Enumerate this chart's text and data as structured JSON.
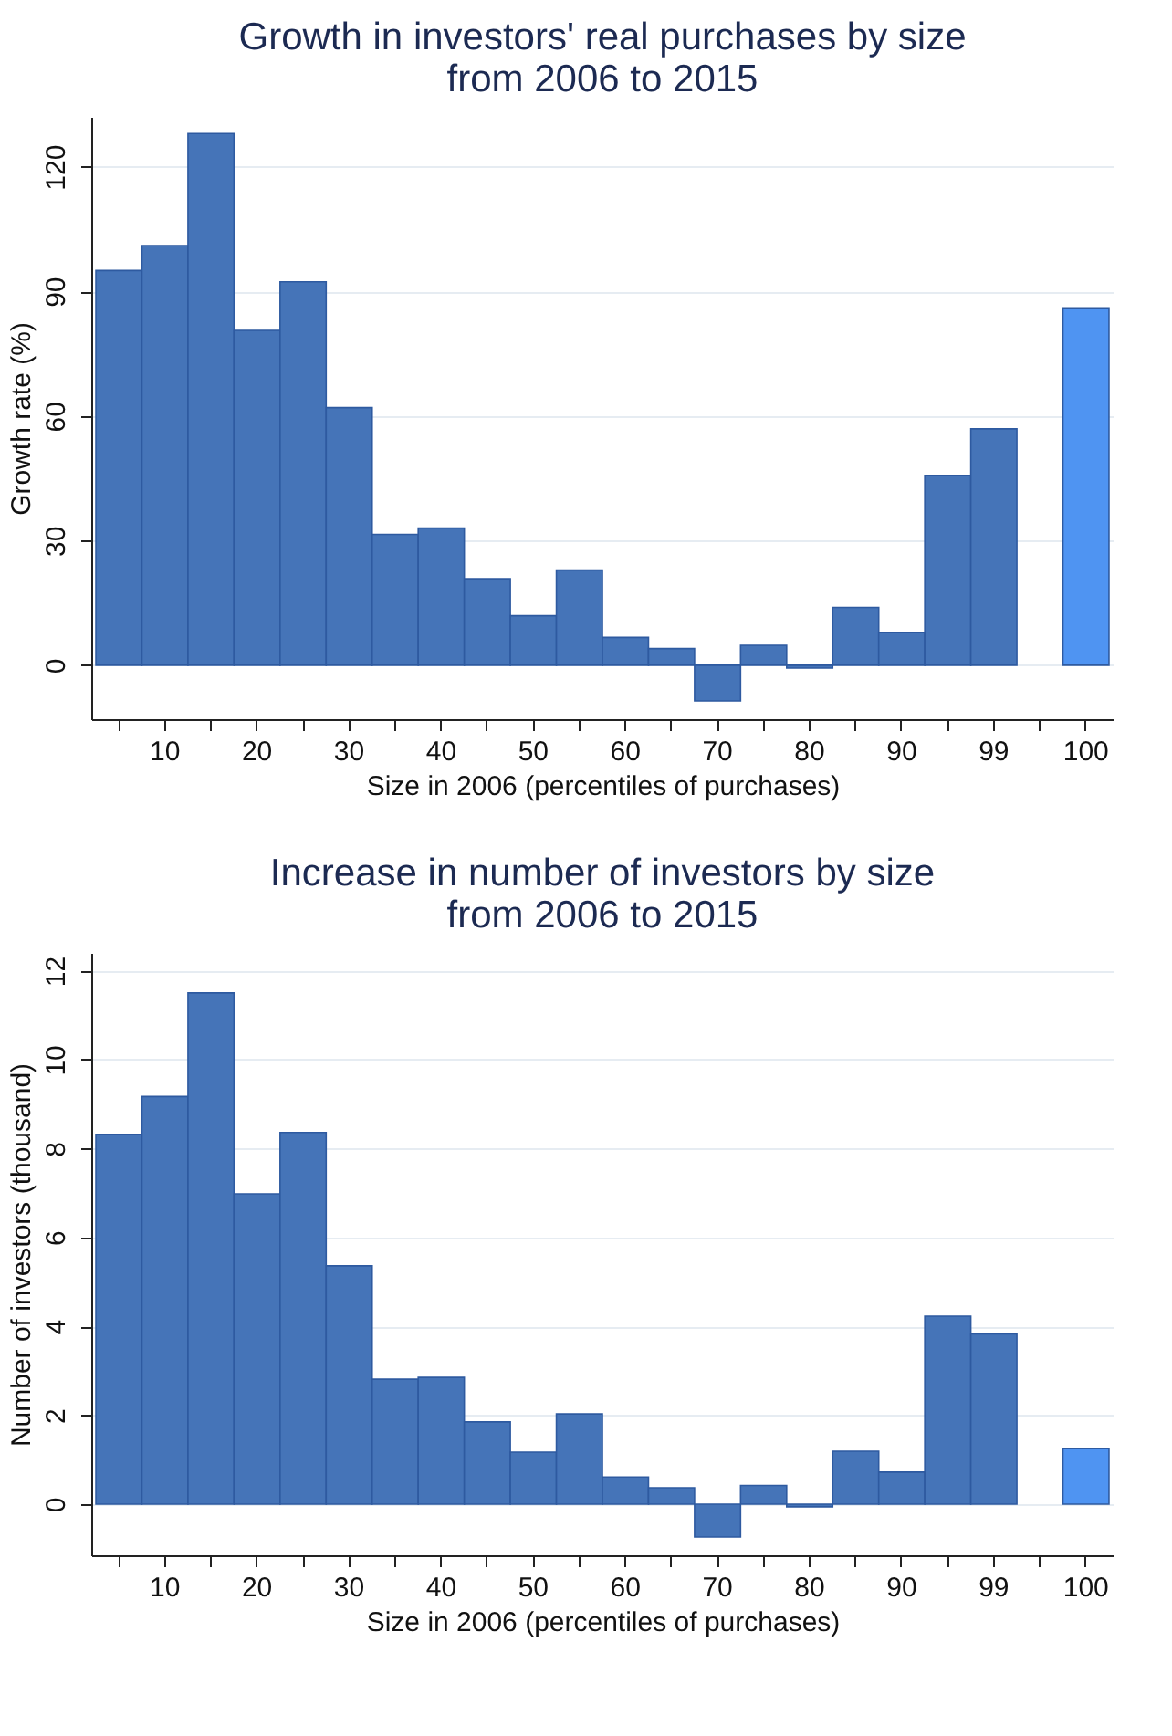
{
  "chart_data": [
    {
      "type": "bar",
      "title": "Growth in investors' real purchases by size\nfrom 2006 to 2015",
      "xlabel": "Size in 2006 (percentiles of purchases)",
      "ylabel": "Growth rate (%)",
      "categories": [
        null,
        "10",
        null,
        "20",
        null,
        "30",
        null,
        "40",
        null,
        "50",
        null,
        "60",
        null,
        "70",
        null,
        "80",
        null,
        "90",
        null,
        "99",
        null,
        "100"
      ],
      "values": [
        95,
        101,
        128,
        80.6,
        92.3,
        62,
        31.5,
        33,
        20.8,
        11.9,
        22.9,
        6.7,
        4,
        -8.6,
        4.8,
        -0.7,
        13.9,
        7.9,
        45.7,
        56.9,
        null,
        86
      ],
      "colors": [
        "#4574b8",
        "#4574b8",
        "#4574b8",
        "#4574b8",
        "#4574b8",
        "#4574b8",
        "#4574b8",
        "#4574b8",
        "#4574b8",
        "#4574b8",
        "#4574b8",
        "#4574b8",
        "#4574b8",
        "#4574b8",
        "#4574b8",
        "#4574b8",
        "#4574b8",
        "#4574b8",
        "#4574b8",
        "#4574b8",
        "#4574b8",
        "#4f94f2"
      ],
      "ylim": [
        -13,
        132
      ],
      "yticks": [
        0,
        30,
        60,
        90,
        120
      ],
      "grid": "y"
    },
    {
      "type": "bar",
      "title": "Increase in number of investors by size\nfrom 2006 to 2015",
      "xlabel": "Size in 2006 (percentiles of purchases)",
      "ylabel": "Number of investors (thousand)",
      "categories": [
        null,
        "10",
        null,
        "20",
        null,
        "30",
        null,
        "40",
        null,
        "50",
        null,
        "60",
        null,
        "70",
        null,
        "80",
        null,
        "90",
        null,
        "99",
        null,
        "100"
      ],
      "values": [
        8.32,
        9.17,
        11.5,
        6.98,
        8.36,
        5.36,
        2.81,
        2.85,
        1.85,
        1.17,
        2.03,
        0.61,
        0.37,
        -0.74,
        0.42,
        -0.06,
        1.19,
        0.72,
        4.23,
        3.83,
        null,
        1.25
      ],
      "colors": [
        "#4574b8",
        "#4574b8",
        "#4574b8",
        "#4574b8",
        "#4574b8",
        "#4574b8",
        "#4574b8",
        "#4574b8",
        "#4574b8",
        "#4574b8",
        "#4574b8",
        "#4574b8",
        "#4574b8",
        "#4574b8",
        "#4574b8",
        "#4574b8",
        "#4574b8",
        "#4574b8",
        "#4574b8",
        "#4574b8",
        "#4574b8",
        "#4f94f2"
      ],
      "ylim": [
        -1.15,
        12.4
      ],
      "yticks": [
        0,
        2,
        4,
        6,
        8,
        10,
        12
      ],
      "grid": "y"
    }
  ]
}
